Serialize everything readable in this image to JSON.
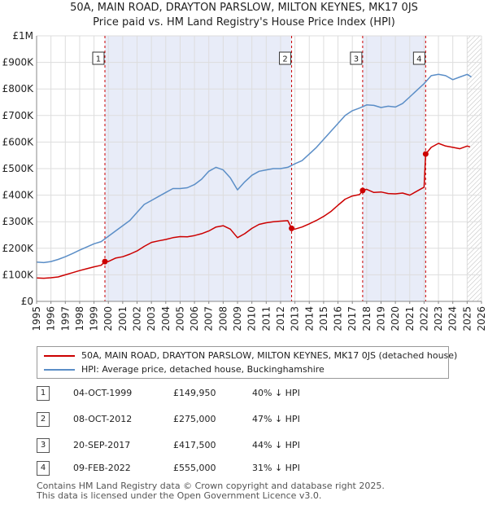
{
  "title_line1": "50A, MAIN ROAD, DRAYTON PARSLOW, MILTON KEYNES, MK17 0JS",
  "title_line2": "Price paid vs. HM Land Registry's House Price Index (HPI)",
  "colors": {
    "property": "#cc0000",
    "hpi": "#5b8ec7",
    "shade": "#e8ecf8",
    "grid": "#dddddd",
    "marker_box": "#333333"
  },
  "legend": {
    "property_label": "50A, MAIN ROAD, DRAYTON PARSLOW, MILTON KEYNES, MK17 0JS (detached house)",
    "hpi_label": "HPI: Average price, detached house, Buckinghamshire"
  },
  "sales": [
    {
      "num": "1",
      "date": "04-OCT-1999",
      "price": "£149,950",
      "hpi": "40% ↓ HPI"
    },
    {
      "num": "2",
      "date": "08-OCT-2012",
      "price": "£275,000",
      "hpi": "47% ↓ HPI"
    },
    {
      "num": "3",
      "date": "20-SEP-2017",
      "price": "£417,500",
      "hpi": "44% ↓ HPI"
    },
    {
      "num": "4",
      "date": "09-FEB-2022",
      "price": "£555,000",
      "hpi": "31% ↓ HPI"
    }
  ],
  "footer_line1": "Contains HM Land Registry data © Crown copyright and database right 2025.",
  "footer_line2": "This data is licensed under the Open Government Licence v3.0.",
  "chart_data": {
    "type": "line",
    "title": "50A, MAIN ROAD, DRAYTON PARSLOW, MILTON KEYNES, MK17 0JS",
    "subtitle": "Price paid vs. HM Land Registry's House Price Index (HPI)",
    "xlabel": "",
    "ylabel": "",
    "xlim": [
      1995,
      2026
    ],
    "ylim": [
      0,
      1000000
    ],
    "x_ticks": [
      1995,
      1996,
      1997,
      1998,
      1999,
      2000,
      2001,
      2002,
      2003,
      2004,
      2005,
      2006,
      2007,
      2008,
      2009,
      2010,
      2011,
      2012,
      2013,
      2014,
      2015,
      2016,
      2017,
      2018,
      2019,
      2020,
      2021,
      2022,
      2023,
      2024,
      2025,
      2026
    ],
    "y_ticks": [
      0,
      100000,
      200000,
      300000,
      400000,
      500000,
      600000,
      700000,
      800000,
      900000,
      1000000
    ],
    "y_tick_labels": [
      "£0",
      "£100K",
      "£200K",
      "£300K",
      "£400K",
      "£500K",
      "£600K",
      "£700K",
      "£800K",
      "£900K",
      "£1M"
    ],
    "shaded_spans": [
      [
        1999.76,
        2012.77
      ],
      [
        2017.72,
        2022.11
      ]
    ],
    "hatched_after": 2025.0,
    "sale_markers": [
      {
        "label": "1",
        "x": 1999.76,
        "y": 149950
      },
      {
        "label": "2",
        "x": 2012.77,
        "y": 275000
      },
      {
        "label": "3",
        "x": 2017.72,
        "y": 417500
      },
      {
        "label": "4",
        "x": 2022.11,
        "y": 555000
      }
    ],
    "series": [
      {
        "name": "50A, MAIN ROAD, DRAYTON PARSLOW, MILTON KEYNES, MK17 0JS (detached house)",
        "color": "#cc0000",
        "points": [
          [
            1995.0,
            88000
          ],
          [
            1995.5,
            87000
          ],
          [
            1996.0,
            89000
          ],
          [
            1996.5,
            92000
          ],
          [
            1997.0,
            100000
          ],
          [
            1997.5,
            108000
          ],
          [
            1998.0,
            116000
          ],
          [
            1998.5,
            123000
          ],
          [
            1999.0,
            130000
          ],
          [
            1999.5,
            136000
          ],
          [
            1999.76,
            149950
          ],
          [
            2000.0,
            150000
          ],
          [
            2000.5,
            163000
          ],
          [
            2001.0,
            168000
          ],
          [
            2001.5,
            178000
          ],
          [
            2002.0,
            190000
          ],
          [
            2002.5,
            207000
          ],
          [
            2003.0,
            222000
          ],
          [
            2003.5,
            228000
          ],
          [
            2004.0,
            233000
          ],
          [
            2004.5,
            240000
          ],
          [
            2005.0,
            244000
          ],
          [
            2005.5,
            243000
          ],
          [
            2006.0,
            248000
          ],
          [
            2006.5,
            255000
          ],
          [
            2007.0,
            265000
          ],
          [
            2007.5,
            280000
          ],
          [
            2008.0,
            285000
          ],
          [
            2008.5,
            272000
          ],
          [
            2009.0,
            240000
          ],
          [
            2009.5,
            255000
          ],
          [
            2010.0,
            275000
          ],
          [
            2010.5,
            290000
          ],
          [
            2011.0,
            296000
          ],
          [
            2011.5,
            300000
          ],
          [
            2012.0,
            302000
          ],
          [
            2012.5,
            304000
          ],
          [
            2012.77,
            275000
          ],
          [
            2013.0,
            272000
          ],
          [
            2013.5,
            280000
          ],
          [
            2014.0,
            292000
          ],
          [
            2014.5,
            305000
          ],
          [
            2015.0,
            320000
          ],
          [
            2015.5,
            338000
          ],
          [
            2016.0,
            362000
          ],
          [
            2016.5,
            385000
          ],
          [
            2017.0,
            397000
          ],
          [
            2017.5,
            402000
          ],
          [
            2017.72,
            417500
          ],
          [
            2018.0,
            422000
          ],
          [
            2018.5,
            410000
          ],
          [
            2019.0,
            412000
          ],
          [
            2019.5,
            406000
          ],
          [
            2020.0,
            405000
          ],
          [
            2020.5,
            408000
          ],
          [
            2021.0,
            400000
          ],
          [
            2021.5,
            415000
          ],
          [
            2022.0,
            430000
          ],
          [
            2022.11,
            555000
          ],
          [
            2022.5,
            580000
          ],
          [
            2023.0,
            595000
          ],
          [
            2023.5,
            585000
          ],
          [
            2024.0,
            580000
          ],
          [
            2024.5,
            575000
          ],
          [
            2025.0,
            585000
          ],
          [
            2025.2,
            582000
          ]
        ]
      },
      {
        "name": "HPI: Average price, detached house, Buckinghamshire",
        "color": "#5b8ec7",
        "points": [
          [
            1995.0,
            148000
          ],
          [
            1995.5,
            146000
          ],
          [
            1996.0,
            150000
          ],
          [
            1996.5,
            158000
          ],
          [
            1997.0,
            168000
          ],
          [
            1997.5,
            180000
          ],
          [
            1998.0,
            193000
          ],
          [
            1998.5,
            205000
          ],
          [
            1999.0,
            217000
          ],
          [
            1999.5,
            225000
          ],
          [
            2000.0,
            245000
          ],
          [
            2000.5,
            265000
          ],
          [
            2001.0,
            285000
          ],
          [
            2001.5,
            305000
          ],
          [
            2002.0,
            335000
          ],
          [
            2002.5,
            365000
          ],
          [
            2003.0,
            380000
          ],
          [
            2003.5,
            395000
          ],
          [
            2004.0,
            410000
          ],
          [
            2004.5,
            425000
          ],
          [
            2005.0,
            425000
          ],
          [
            2005.5,
            428000
          ],
          [
            2006.0,
            440000
          ],
          [
            2006.5,
            460000
          ],
          [
            2007.0,
            490000
          ],
          [
            2007.5,
            505000
          ],
          [
            2008.0,
            495000
          ],
          [
            2008.5,
            465000
          ],
          [
            2009.0,
            420000
          ],
          [
            2009.5,
            450000
          ],
          [
            2010.0,
            475000
          ],
          [
            2010.5,
            490000
          ],
          [
            2011.0,
            495000
          ],
          [
            2011.5,
            500000
          ],
          [
            2012.0,
            500000
          ],
          [
            2012.5,
            505000
          ],
          [
            2013.0,
            518000
          ],
          [
            2013.5,
            530000
          ],
          [
            2014.0,
            555000
          ],
          [
            2014.5,
            580000
          ],
          [
            2015.0,
            610000
          ],
          [
            2015.5,
            640000
          ],
          [
            2016.0,
            670000
          ],
          [
            2016.5,
            700000
          ],
          [
            2017.0,
            718000
          ],
          [
            2017.5,
            728000
          ],
          [
            2018.0,
            740000
          ],
          [
            2018.5,
            738000
          ],
          [
            2019.0,
            730000
          ],
          [
            2019.5,
            735000
          ],
          [
            2020.0,
            732000
          ],
          [
            2020.5,
            745000
          ],
          [
            2021.0,
            770000
          ],
          [
            2021.5,
            795000
          ],
          [
            2022.0,
            820000
          ],
          [
            2022.5,
            850000
          ],
          [
            2023.0,
            855000
          ],
          [
            2023.5,
            850000
          ],
          [
            2024.0,
            835000
          ],
          [
            2024.5,
            845000
          ],
          [
            2025.0,
            855000
          ],
          [
            2025.3,
            845000
          ]
        ]
      }
    ]
  }
}
